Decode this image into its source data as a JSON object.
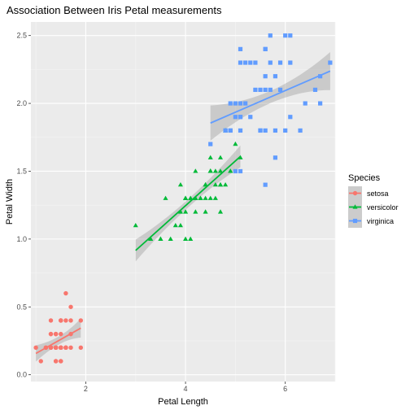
{
  "chart_data": {
    "type": "scatter",
    "title": "Association Between Iris Petal measurements",
    "xlabel": "Petal Length",
    "ylabel": "Petal Width",
    "xlim": [
      0.9,
      7.0
    ],
    "ylim": [
      -0.05,
      2.6
    ],
    "x_ticks": [
      2,
      4,
      6
    ],
    "y_ticks": [
      0.0,
      0.5,
      1.0,
      1.5,
      2.0,
      2.5
    ],
    "x_tick_labels": [
      "2",
      "4",
      "6"
    ],
    "y_tick_labels": [
      "0.0",
      "0.5",
      "1.0",
      "1.5",
      "2.0",
      "2.5"
    ],
    "grid": true,
    "legend": {
      "title": "Species",
      "position": "right"
    },
    "series": [
      {
        "name": "setosa",
        "color": "#F8766D",
        "marker": "circle",
        "x": [
          1.4,
          1.4,
          1.3,
          1.5,
          1.4,
          1.7,
          1.4,
          1.5,
          1.4,
          1.5,
          1.5,
          1.6,
          1.4,
          1.1,
          1.2,
          1.5,
          1.3,
          1.4,
          1.7,
          1.5,
          1.7,
          1.5,
          1.0,
          1.7,
          1.9,
          1.6,
          1.6,
          1.5,
          1.4,
          1.6,
          1.6,
          1.5,
          1.5,
          1.4,
          1.5,
          1.2,
          1.3,
          1.4,
          1.3,
          1.5,
          1.3,
          1.3,
          1.3,
          1.6,
          1.9,
          1.4,
          1.6,
          1.4,
          1.5,
          1.4
        ],
        "y": [
          0.2,
          0.2,
          0.2,
          0.2,
          0.2,
          0.4,
          0.3,
          0.2,
          0.2,
          0.1,
          0.2,
          0.2,
          0.1,
          0.1,
          0.2,
          0.4,
          0.4,
          0.3,
          0.3,
          0.3,
          0.2,
          0.4,
          0.2,
          0.5,
          0.2,
          0.2,
          0.4,
          0.2,
          0.2,
          0.2,
          0.2,
          0.4,
          0.1,
          0.2,
          0.2,
          0.2,
          0.2,
          0.1,
          0.2,
          0.2,
          0.3,
          0.3,
          0.2,
          0.6,
          0.4,
          0.3,
          0.2,
          0.2,
          0.2,
          0.2
        ],
        "fit": {
          "x": [
            1.0,
            1.9
          ],
          "y": [
            0.157,
            0.344
          ],
          "band_halfwidth": [
            0.06,
            0.03,
            0.07
          ]
        }
      },
      {
        "name": "versicolor",
        "color": "#00BA38",
        "marker": "triangle",
        "x": [
          4.7,
          4.5,
          4.9,
          4.0,
          4.6,
          4.5,
          4.7,
          3.3,
          4.6,
          3.9,
          3.5,
          4.2,
          4.0,
          4.7,
          3.6,
          4.4,
          4.5,
          4.1,
          4.5,
          3.9,
          4.8,
          4.0,
          4.9,
          4.7,
          4.3,
          4.4,
          4.8,
          5.0,
          4.5,
          3.5,
          3.8,
          3.7,
          3.9,
          5.1,
          4.5,
          4.5,
          4.7,
          4.4,
          4.1,
          4.0,
          4.4,
          4.6,
          4.0,
          3.3,
          4.2,
          4.2,
          4.2,
          4.3,
          3.0,
          4.1
        ],
        "y": [
          1.4,
          1.5,
          1.5,
          1.3,
          1.5,
          1.3,
          1.6,
          1.0,
          1.3,
          1.4,
          1.0,
          1.5,
          1.0,
          1.4,
          1.3,
          1.4,
          1.5,
          1.0,
          1.5,
          1.1,
          1.8,
          1.3,
          1.5,
          1.2,
          1.3,
          1.4,
          1.4,
          1.7,
          1.5,
          1.0,
          1.1,
          1.0,
          1.2,
          1.6,
          1.5,
          1.6,
          1.5,
          1.3,
          1.3,
          1.3,
          1.2,
          1.4,
          1.2,
          1.0,
          1.3,
          1.2,
          1.3,
          1.3,
          1.1,
          1.3
        ],
        "fit": {
          "x": [
            3.0,
            5.1
          ],
          "y": [
            0.916,
            1.609
          ],
          "band_halfwidth": [
            0.08,
            0.03,
            0.08
          ]
        }
      },
      {
        "name": "virginica",
        "color": "#619CFF",
        "marker": "square",
        "x": [
          6.0,
          5.1,
          5.9,
          5.6,
          5.8,
          6.6,
          4.5,
          6.3,
          5.8,
          6.1,
          5.1,
          5.3,
          5.5,
          5.0,
          5.1,
          5.3,
          5.5,
          6.7,
          6.9,
          5.0,
          5.7,
          4.9,
          6.7,
          4.9,
          5.7,
          6.0,
          4.8,
          4.9,
          5.6,
          5.8,
          6.1,
          6.4,
          5.6,
          5.1,
          5.6,
          6.1,
          5.6,
          5.5,
          4.8,
          5.4,
          5.6,
          5.1,
          5.1,
          5.9,
          5.7,
          5.2,
          5.0,
          5.2,
          5.4,
          5.1
        ],
        "y": [
          2.5,
          1.9,
          2.1,
          1.8,
          2.2,
          2.1,
          1.7,
          1.8,
          1.8,
          2.5,
          2.0,
          1.9,
          2.1,
          2.0,
          2.4,
          2.3,
          1.8,
          2.2,
          2.3,
          1.5,
          2.3,
          2.0,
          2.0,
          1.8,
          2.1,
          1.8,
          1.8,
          1.8,
          2.1,
          1.6,
          1.9,
          2.0,
          2.2,
          1.5,
          1.4,
          2.3,
          2.4,
          1.8,
          1.8,
          2.1,
          2.4,
          2.3,
          1.9,
          2.3,
          2.5,
          2.3,
          1.9,
          2.0,
          2.3,
          1.8
        ],
        "fit": {
          "x": [
            4.5,
            6.9
          ],
          "y": [
            1.855,
            2.238
          ],
          "band_halfwidth": [
            0.13,
            0.045,
            0.14
          ]
        }
      }
    ]
  }
}
